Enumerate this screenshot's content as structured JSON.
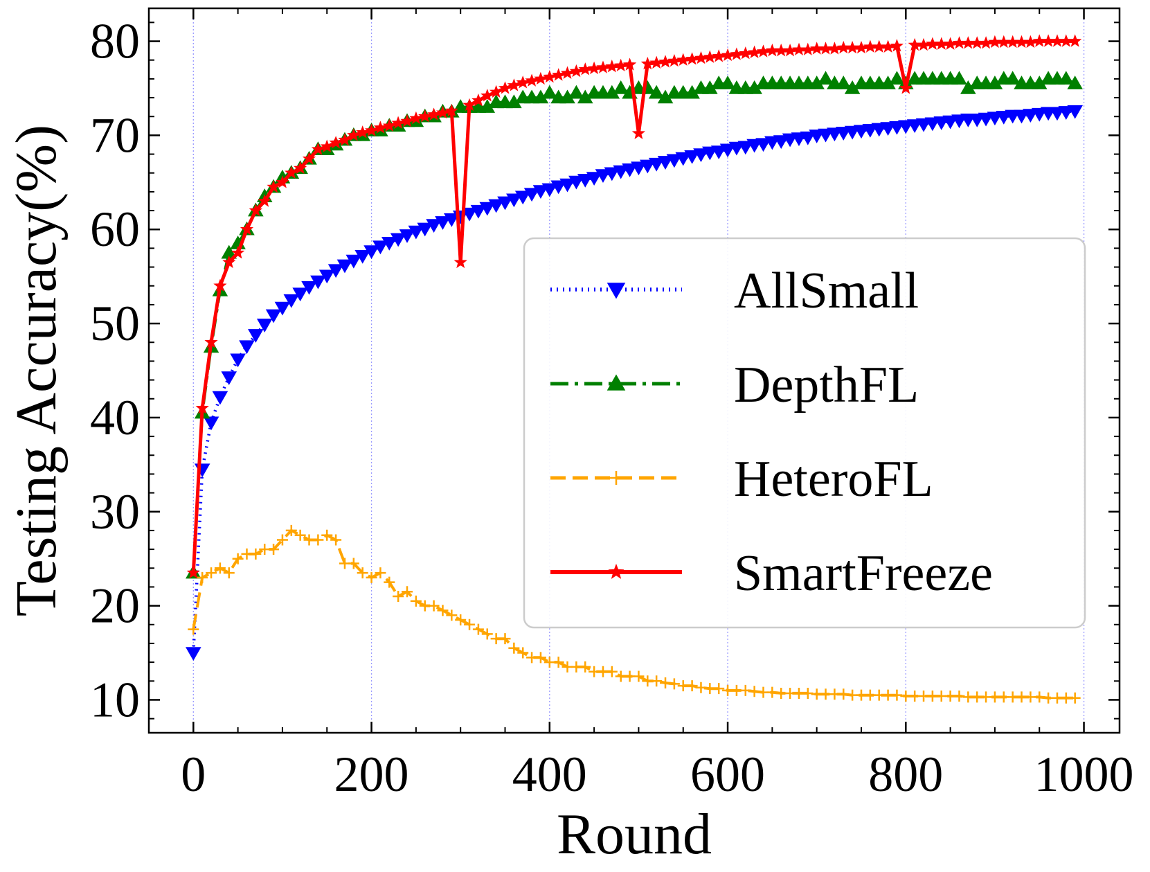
{
  "chart_data": {
    "type": "line",
    "xlabel": "Round",
    "ylabel": "Testing Accuracy(%)",
    "xlim": [
      -50,
      1040
    ],
    "ylim": [
      6.5,
      83.5
    ],
    "xticks": [
      0,
      200,
      400,
      600,
      800,
      1000
    ],
    "xtick_labels": [
      "0",
      "200",
      "400",
      "600",
      "800",
      "1000"
    ],
    "yticks": [
      10,
      20,
      30,
      40,
      50,
      60,
      70,
      80
    ],
    "ytick_labels": [
      "10",
      "20",
      "30",
      "40",
      "50",
      "60",
      "70",
      "80"
    ],
    "grid": "x-only dotted",
    "legend_position": "center-right",
    "x": [
      0,
      10,
      20,
      30,
      40,
      50,
      60,
      70,
      80,
      90,
      100,
      110,
      120,
      130,
      140,
      150,
      160,
      170,
      180,
      190,
      200,
      210,
      220,
      230,
      240,
      250,
      260,
      270,
      280,
      290,
      300,
      310,
      320,
      330,
      340,
      350,
      360,
      370,
      380,
      390,
      400,
      410,
      420,
      430,
      440,
      450,
      460,
      470,
      480,
      490,
      500,
      510,
      520,
      530,
      540,
      550,
      560,
      570,
      580,
      590,
      600,
      610,
      620,
      630,
      640,
      650,
      660,
      670,
      680,
      690,
      700,
      710,
      720,
      730,
      740,
      750,
      760,
      770,
      780,
      790,
      800,
      810,
      820,
      830,
      840,
      850,
      860,
      870,
      880,
      890,
      900,
      910,
      920,
      930,
      940,
      950,
      960,
      970,
      980,
      990
    ],
    "series": [
      {
        "name": "AllSmall",
        "color": "#0000ff",
        "line_style": "dotted",
        "marker": "triangle-down",
        "values": [
          15.0,
          34.5,
          39.5,
          42.2,
          44.3,
          46.2,
          47.6,
          48.8,
          49.9,
          50.9,
          51.7,
          52.5,
          53.2,
          53.9,
          54.5,
          55.1,
          55.7,
          56.2,
          56.7,
          57.2,
          57.7,
          58.2,
          58.6,
          59.0,
          59.4,
          59.8,
          60.1,
          60.5,
          60.8,
          61.1,
          61.4,
          61.7,
          62.0,
          62.3,
          62.6,
          62.9,
          63.2,
          63.5,
          63.8,
          64.1,
          64.3,
          64.6,
          64.8,
          65.1,
          65.3,
          65.5,
          65.8,
          66.0,
          66.2,
          66.4,
          66.6,
          66.8,
          67.0,
          67.2,
          67.4,
          67.6,
          67.8,
          68.0,
          68.2,
          68.3,
          68.5,
          68.7,
          68.8,
          69.0,
          69.1,
          69.3,
          69.4,
          69.6,
          69.7,
          69.8,
          70.0,
          70.1,
          70.2,
          70.3,
          70.4,
          70.5,
          70.6,
          70.7,
          70.8,
          70.9,
          71.0,
          71.1,
          71.2,
          71.3,
          71.4,
          71.5,
          71.6,
          71.7,
          71.7,
          71.8,
          71.9,
          72.0,
          72.1,
          72.1,
          72.2,
          72.3,
          72.4,
          72.4,
          72.5,
          72.6
        ]
      },
      {
        "name": "DepthFL",
        "color": "#008000",
        "line_style": "dashdot",
        "marker": "triangle-up",
        "values": [
          23.5,
          40.5,
          47.5,
          53.5,
          57.5,
          58.5,
          60.0,
          62.0,
          63.5,
          64.5,
          65.5,
          66.0,
          66.5,
          67.5,
          68.5,
          68.5,
          69.0,
          69.5,
          70.0,
          70.0,
          70.5,
          70.5,
          71.0,
          71.0,
          71.5,
          71.5,
          72.0,
          72.0,
          72.5,
          72.5,
          73.0,
          73.0,
          73.0,
          73.0,
          73.5,
          73.5,
          73.5,
          74.0,
          74.0,
          74.0,
          74.5,
          74.0,
          74.0,
          74.5,
          74.0,
          74.5,
          74.5,
          74.5,
          75.0,
          74.5,
          75.0,
          75.0,
          74.5,
          74.0,
          74.5,
          74.5,
          74.5,
          75.0,
          75.0,
          75.5,
          75.5,
          75.0,
          75.0,
          75.0,
          75.5,
          75.5,
          75.5,
          75.5,
          75.5,
          75.5,
          75.5,
          76.0,
          75.5,
          75.5,
          75.0,
          75.5,
          75.5,
          75.5,
          75.5,
          76.0,
          75.5,
          76.0,
          76.0,
          76.0,
          76.0,
          76.0,
          76.0,
          75.0,
          75.5,
          75.5,
          75.5,
          76.0,
          76.0,
          75.5,
          75.5,
          75.5,
          76.0,
          76.0,
          76.0,
          75.5
        ]
      },
      {
        "name": "HeteroFL",
        "color": "#ffa500",
        "line_style": "dashed",
        "marker": "plus",
        "values": [
          17.5,
          23.0,
          23.5,
          24.0,
          23.5,
          25.0,
          25.5,
          25.5,
          26.0,
          26.0,
          27.0,
          28.0,
          27.5,
          27.0,
          27.0,
          27.5,
          27.0,
          24.5,
          24.5,
          23.5,
          23.0,
          23.5,
          22.5,
          21.0,
          21.5,
          20.5,
          20.0,
          20.0,
          19.5,
          19.0,
          18.5,
          18.0,
          17.5,
          17.0,
          16.5,
          16.5,
          15.5,
          15.0,
          14.5,
          14.5,
          14.0,
          14.0,
          13.5,
          13.5,
          13.5,
          13.0,
          13.0,
          13.0,
          12.5,
          12.5,
          12.5,
          12.0,
          12.0,
          11.8,
          11.7,
          11.5,
          11.5,
          11.3,
          11.2,
          11.2,
          11.0,
          11.0,
          11.0,
          10.9,
          10.8,
          10.8,
          10.7,
          10.7,
          10.7,
          10.7,
          10.6,
          10.6,
          10.6,
          10.6,
          10.5,
          10.5,
          10.5,
          10.5,
          10.5,
          10.5,
          10.4,
          10.4,
          10.4,
          10.4,
          10.4,
          10.4,
          10.4,
          10.3,
          10.3,
          10.3,
          10.3,
          10.3,
          10.3,
          10.3,
          10.3,
          10.3,
          10.2,
          10.2,
          10.2,
          10.2
        ]
      },
      {
        "name": "SmartFreeze",
        "color": "#ff0000",
        "line_style": "solid",
        "marker": "star",
        "values": [
          23.5,
          41.0,
          48.0,
          54.0,
          56.5,
          57.5,
          60.0,
          62.0,
          63.0,
          64.5,
          65.0,
          66.0,
          66.5,
          67.5,
          68.5,
          68.8,
          69.2,
          69.5,
          70.0,
          70.3,
          70.5,
          70.8,
          71.0,
          71.3,
          71.5,
          71.8,
          72.0,
          72.2,
          72.4,
          72.6,
          56.5,
          73.2,
          73.7,
          74.2,
          74.6,
          75.0,
          75.3,
          75.6,
          75.8,
          76.0,
          76.2,
          76.4,
          76.6,
          76.8,
          77.0,
          77.1,
          77.2,
          77.3,
          77.4,
          77.5,
          70.2,
          77.6,
          77.7,
          77.8,
          77.9,
          78.0,
          78.1,
          78.2,
          78.3,
          78.4,
          78.5,
          78.6,
          78.7,
          78.8,
          78.9,
          79.0,
          79.0,
          79.0,
          79.1,
          79.1,
          79.2,
          79.2,
          79.2,
          79.3,
          79.3,
          79.3,
          79.4,
          79.4,
          79.4,
          79.5,
          75.0,
          79.6,
          79.6,
          79.7,
          79.7,
          79.7,
          79.8,
          79.8,
          79.8,
          79.8,
          79.9,
          79.9,
          79.9,
          79.9,
          79.9,
          80.0,
          80.0,
          80.0,
          80.0,
          80.0
        ]
      }
    ]
  }
}
